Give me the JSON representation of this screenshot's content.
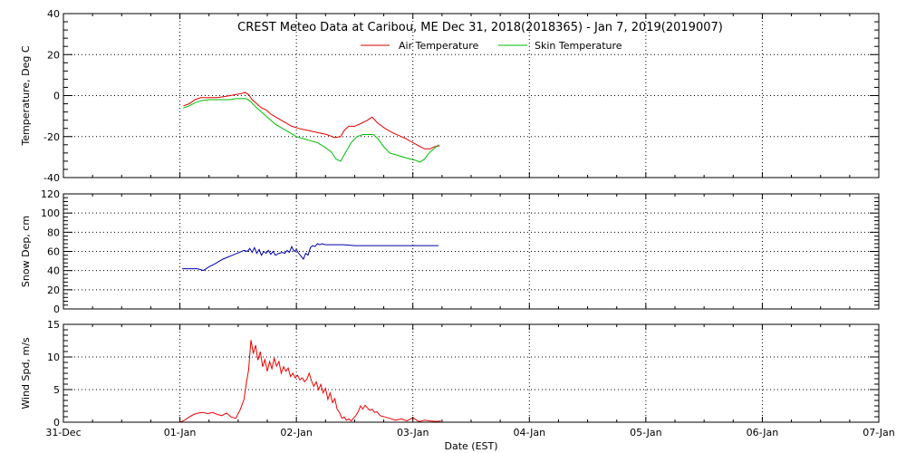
{
  "chart_data": [
    {
      "type": "line",
      "title": "CREST Meteo Data at Caribou, ME   Dec 31, 2018(2018365) - Jan  7, 2019(2019007)",
      "ylabel": "Temperature, Deg C",
      "ylim": [
        -40,
        40
      ],
      "yticks": [
        "-40",
        "-20",
        "0",
        "20",
        "40"
      ],
      "legend_position": "top-center",
      "grid": true,
      "series": [
        {
          "name": "Air Temperature",
          "color": "#dd0000",
          "x": [
            1.03,
            1.08,
            1.13,
            1.18,
            1.25,
            1.32,
            1.38,
            1.43,
            1.48,
            1.53,
            1.56,
            1.59,
            1.62,
            1.66,
            1.7,
            1.74,
            1.78,
            1.84,
            1.9,
            1.96,
            2.02,
            2.1,
            2.18,
            2.26,
            2.33,
            2.38,
            2.41,
            2.45,
            2.5,
            2.56,
            2.61,
            2.65,
            2.7,
            2.76,
            2.82,
            2.88,
            2.94,
            3.0,
            3.05,
            3.1,
            3.15,
            3.18,
            3.23
          ],
          "y": [
            -5,
            -4,
            -2,
            -1,
            -1,
            -1,
            -0.5,
            0,
            0.5,
            1,
            1.5,
            0.5,
            -2,
            -4,
            -6,
            -7,
            -9,
            -11,
            -13,
            -15,
            -16,
            -17,
            -18,
            -19,
            -20.5,
            -20,
            -17,
            -15,
            -15,
            -13.5,
            -12,
            -10.5,
            -13.5,
            -16,
            -18,
            -19.5,
            -21,
            -23,
            -24.5,
            -26,
            -26,
            -25,
            -24.5
          ]
        },
        {
          "name": "Skin Temperature",
          "color": "#00bb00",
          "x": [
            1.03,
            1.08,
            1.13,
            1.18,
            1.25,
            1.32,
            1.38,
            1.43,
            1.48,
            1.53,
            1.57,
            1.61,
            1.65,
            1.7,
            1.76,
            1.82,
            1.88,
            1.94,
            2.0,
            2.06,
            2.12,
            2.18,
            2.24,
            2.3,
            2.34,
            2.38,
            2.42,
            2.47,
            2.52,
            2.57,
            2.62,
            2.66,
            2.7,
            2.75,
            2.8,
            2.86,
            2.92,
            2.98,
            3.02,
            3.06,
            3.1,
            3.14,
            3.18,
            3.22
          ],
          "y": [
            -6,
            -5,
            -3.5,
            -2.5,
            -2,
            -2,
            -2,
            -2,
            -1.5,
            -1.5,
            -1.5,
            -3,
            -5.5,
            -8,
            -11,
            -14,
            -16,
            -18,
            -20,
            -21,
            -22,
            -23,
            -25,
            -27.5,
            -31,
            -32,
            -28,
            -23,
            -20,
            -19,
            -19,
            -19,
            -21,
            -25,
            -28,
            -29,
            -30,
            -31,
            -31.5,
            -32.5,
            -31,
            -28,
            -26,
            -24
          ]
        }
      ]
    },
    {
      "type": "line",
      "ylabel": "Snow Dep, cm",
      "ylim": [
        0,
        120
      ],
      "yticks": [
        "0",
        "20",
        "40",
        "60",
        "80",
        "100",
        "120"
      ],
      "grid": true,
      "series": [
        {
          "color": "#0000aa",
          "x": [
            1.02,
            1.05,
            1.09,
            1.12,
            1.15,
            1.18,
            1.2,
            1.25,
            1.3,
            1.34,
            1.37,
            1.55,
            1.58,
            1.6,
            1.62,
            1.64,
            1.66,
            1.68,
            1.7,
            1.72,
            1.74,
            1.76,
            1.78,
            1.8,
            1.82,
            1.85,
            1.88,
            1.9,
            1.92,
            1.94,
            1.96,
            1.98,
            2.0,
            2.02,
            2.04,
            2.06,
            2.08,
            2.1,
            2.12,
            2.14,
            2.16,
            2.18,
            2.2,
            2.22,
            2.25,
            2.3,
            2.4,
            2.5,
            2.6,
            2.7,
            2.8,
            2.9,
            3.0,
            3.1,
            3.22
          ],
          "y": [
            42,
            42,
            42,
            42,
            42,
            41,
            40,
            44,
            47,
            50,
            52,
            61,
            60,
            63,
            59,
            64,
            58,
            62,
            56,
            60,
            58,
            61,
            57,
            60,
            56,
            58,
            59,
            58,
            61,
            59,
            65,
            60,
            62,
            58,
            55,
            52,
            58,
            56,
            64,
            66,
            65,
            68,
            67,
            68,
            67,
            67,
            67,
            66,
            66,
            66,
            66,
            66,
            66,
            66,
            66
          ]
        }
      ]
    },
    {
      "type": "line",
      "ylabel": "Wind Spd, m/s",
      "xlabel": "Date (EST)",
      "ylim": [
        0,
        15
      ],
      "yticks": [
        "0",
        "5",
        "10",
        "15"
      ],
      "xticks": [
        "31-Dec",
        "01-Jan",
        "02-Jan",
        "03-Jan",
        "04-Jan",
        "05-Jan",
        "06-Jan",
        "07-Jan"
      ],
      "xlim": [
        0,
        7
      ],
      "grid": true,
      "series": [
        {
          "color": "#ee0000",
          "x": [
            1.0,
            1.04,
            1.08,
            1.12,
            1.16,
            1.2,
            1.24,
            1.28,
            1.32,
            1.36,
            1.4,
            1.44,
            1.48,
            1.52,
            1.55,
            1.57,
            1.59,
            1.61,
            1.63,
            1.65,
            1.67,
            1.69,
            1.71,
            1.73,
            1.75,
            1.77,
            1.79,
            1.81,
            1.83,
            1.85,
            1.87,
            1.89,
            1.91,
            1.93,
            1.95,
            1.97,
            1.99,
            2.01,
            2.03,
            2.05,
            2.07,
            2.09,
            2.11,
            2.13,
            2.15,
            2.17,
            2.19,
            2.21,
            2.23,
            2.25,
            2.27,
            2.29,
            2.31,
            2.33,
            2.35,
            2.37,
            2.39,
            2.41,
            2.43,
            2.45,
            2.47,
            2.49,
            2.51,
            2.53,
            2.55,
            2.57,
            2.59,
            2.61,
            2.63,
            2.65,
            2.67,
            2.69,
            2.72,
            2.76,
            2.8,
            2.85,
            2.9,
            2.95,
            3.0,
            3.05,
            3.1,
            3.15,
            3.2,
            3.24
          ],
          "y": [
            0,
            0.3,
            0.8,
            1.2,
            1.4,
            1.5,
            1.3,
            1.5,
            1.2,
            1.0,
            1.4,
            0.8,
            0.6,
            2.0,
            3.5,
            6.0,
            8.0,
            12.6,
            10.5,
            11.8,
            9.5,
            10.8,
            8.5,
            9.6,
            7.8,
            9.3,
            8.2,
            9.8,
            8.6,
            9.3,
            7.5,
            8.5,
            7.8,
            8.3,
            7.0,
            7.5,
            6.8,
            7.2,
            6.5,
            6.8,
            6.2,
            6.6,
            7.5,
            6.3,
            5.5,
            6.2,
            5.0,
            5.8,
            4.5,
            5.2,
            3.5,
            4.5,
            3.0,
            3.6,
            2.0,
            1.5,
            0.6,
            0.8,
            0.3,
            0.5,
            0.2,
            0.6,
            1.0,
            1.6,
            2.5,
            2.0,
            2.6,
            2.2,
            1.8,
            2.0,
            1.5,
            1.6,
            1.0,
            0.8,
            0.6,
            0.3,
            0.5,
            0.2,
            0.7,
            0.1,
            0.3,
            0.2,
            0.1,
            0.2
          ]
        }
      ]
    }
  ]
}
